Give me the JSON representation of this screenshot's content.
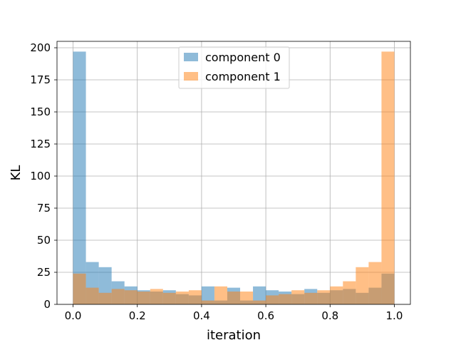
{
  "chart_data": {
    "type": "bar",
    "xlabel": "iteration",
    "ylabel": "KL",
    "xlim": [
      -0.05,
      1.05
    ],
    "ylim": [
      0,
      205
    ],
    "xticks": [
      0.0,
      0.2,
      0.4,
      0.6,
      0.8,
      1.0
    ],
    "xtick_labels": [
      "0.0",
      "0.2",
      "0.4",
      "0.6",
      "0.8",
      "1.0"
    ],
    "yticks": [
      0,
      25,
      50,
      75,
      100,
      125,
      150,
      175,
      200
    ],
    "ytick_labels": [
      "0",
      "25",
      "50",
      "75",
      "100",
      "125",
      "150",
      "175",
      "200"
    ],
    "grid": true,
    "legend_position": "top-center",
    "bin_edges": [
      0.0,
      0.04,
      0.08,
      0.12,
      0.16,
      0.2,
      0.24,
      0.28,
      0.32,
      0.36,
      0.4,
      0.44,
      0.48,
      0.52,
      0.56,
      0.6,
      0.64,
      0.68,
      0.72,
      0.76,
      0.8,
      0.84,
      0.88,
      0.92,
      0.96,
      1.0
    ],
    "series": [
      {
        "name": "component 0",
        "color": "#1f77b4",
        "values": [
          197,
          33,
          29,
          18,
          14,
          11,
          10,
          11,
          8,
          7,
          14,
          3,
          13,
          3,
          14,
          11,
          10,
          8,
          12,
          9,
          11,
          12,
          9,
          13,
          24
        ]
      },
      {
        "name": "component 1",
        "color": "#ff7f0e",
        "values": [
          24,
          13,
          9,
          12,
          11,
          10,
          12,
          9,
          10,
          11,
          3,
          14,
          10,
          10,
          3,
          7,
          8,
          11,
          9,
          11,
          14,
          18,
          29,
          33,
          197
        ]
      }
    ]
  }
}
